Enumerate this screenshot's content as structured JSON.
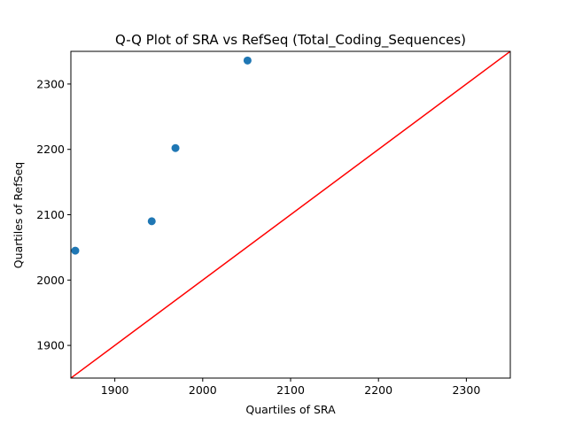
{
  "chart_data": {
    "type": "scatter",
    "title": "Q-Q Plot of SRA vs RefSeq (Total_Coding_Sequences)",
    "xlabel": "Quartiles of SRA",
    "ylabel": "Quartiles of RefSeq",
    "xlim": [
      1850,
      2350
    ],
    "ylim": [
      1850,
      2350
    ],
    "xticks": [
      1900,
      2000,
      2100,
      2200,
      2300
    ],
    "yticks": [
      1900,
      2000,
      2100,
      2200,
      2300
    ],
    "points": [
      {
        "x": 1855,
        "y": 2045
      },
      {
        "x": 1942,
        "y": 2090
      },
      {
        "x": 1969,
        "y": 2202
      },
      {
        "x": 2051,
        "y": 2336
      }
    ],
    "reference_line": {
      "from": [
        1850,
        1850
      ],
      "to": [
        2350,
        2350
      ]
    },
    "grid": false,
    "colors": {
      "points": "#1f77b4",
      "reference_line": "#ff0000",
      "axes": "#000000"
    }
  }
}
